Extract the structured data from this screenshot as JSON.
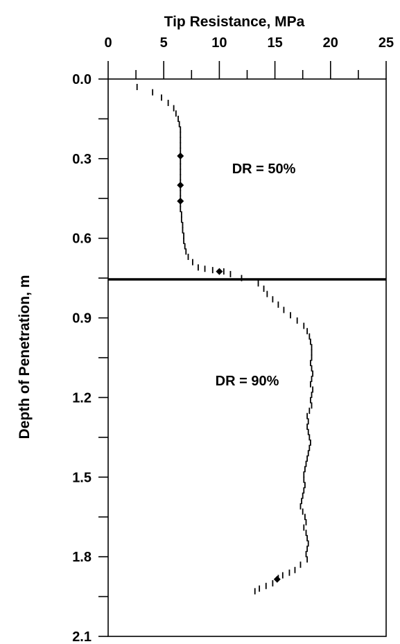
{
  "chart_data": {
    "type": "scatter",
    "title": "",
    "xlabel": "Tip Resistance, MPa",
    "ylabel": "Depth of Penetration, m",
    "xlim": [
      0,
      25
    ],
    "ylim": [
      0.0,
      2.1
    ],
    "y_inverted": true,
    "x_axis_position": "top",
    "x_ticks": [
      "0",
      "5",
      "10",
      "15",
      "20",
      "25"
    ],
    "y_ticks": [
      "0.0",
      "0.3",
      "0.6",
      "0.9",
      "1.2",
      "1.5",
      "1.8",
      "2.1"
    ],
    "grid": false,
    "layer_boundary_depth": 0.755,
    "annotations": [
      {
        "text": "DR = 50%",
        "x": 14,
        "y": 0.355
      },
      {
        "text": "DR = 90%",
        "x": 12.5,
        "y": 1.155
      }
    ],
    "series": [
      {
        "marker": "dash",
        "color": "#000000",
        "points": [
          [
            2.6,
            0.03
          ],
          [
            4.0,
            0.05
          ],
          [
            4.8,
            0.07
          ],
          [
            5.4,
            0.09
          ],
          [
            5.9,
            0.11
          ],
          [
            6.1,
            0.13
          ],
          [
            6.3,
            0.15
          ],
          [
            6.4,
            0.17
          ],
          [
            6.5,
            0.19
          ],
          [
            6.5,
            0.21
          ],
          [
            6.5,
            0.23
          ],
          [
            6.5,
            0.25
          ],
          [
            6.5,
            0.27
          ],
          [
            6.5,
            0.29
          ],
          [
            6.5,
            0.31
          ],
          [
            6.5,
            0.33
          ],
          [
            6.5,
            0.35
          ],
          [
            6.5,
            0.37
          ],
          [
            6.5,
            0.39
          ],
          [
            6.5,
            0.41
          ],
          [
            6.5,
            0.43
          ],
          [
            6.5,
            0.45
          ],
          [
            6.5,
            0.47
          ],
          [
            6.5,
            0.49
          ],
          [
            6.6,
            0.51
          ],
          [
            6.6,
            0.53
          ],
          [
            6.7,
            0.55
          ],
          [
            6.7,
            0.57
          ],
          [
            6.8,
            0.59
          ],
          [
            6.8,
            0.61
          ],
          [
            6.9,
            0.63
          ],
          [
            7.0,
            0.65
          ],
          [
            7.2,
            0.67
          ],
          [
            7.6,
            0.69
          ],
          [
            8.1,
            0.71
          ],
          [
            8.7,
            0.715
          ],
          [
            9.4,
            0.72
          ],
          [
            10.4,
            0.725
          ],
          [
            11.0,
            0.735
          ],
          [
            12.0,
            0.75
          ],
          [
            13.5,
            0.77
          ],
          [
            14.0,
            0.79
          ],
          [
            14.3,
            0.81
          ],
          [
            14.8,
            0.83
          ],
          [
            15.3,
            0.85
          ],
          [
            15.8,
            0.87
          ],
          [
            16.4,
            0.89
          ],
          [
            17.0,
            0.91
          ],
          [
            17.6,
            0.93
          ],
          [
            17.9,
            0.95
          ],
          [
            18.1,
            0.97
          ],
          [
            18.2,
            0.99
          ],
          [
            18.3,
            1.01
          ],
          [
            18.3,
            1.03
          ],
          [
            18.3,
            1.05
          ],
          [
            18.2,
            1.07
          ],
          [
            18.3,
            1.09
          ],
          [
            18.4,
            1.11
          ],
          [
            18.3,
            1.13
          ],
          [
            18.2,
            1.15
          ],
          [
            18.4,
            1.17
          ],
          [
            18.3,
            1.19
          ],
          [
            18.2,
            1.21
          ],
          [
            18.3,
            1.23
          ],
          [
            18.1,
            1.25
          ],
          [
            17.9,
            1.27
          ],
          [
            18.0,
            1.29
          ],
          [
            17.9,
            1.31
          ],
          [
            18.0,
            1.33
          ],
          [
            18.1,
            1.35
          ],
          [
            18.2,
            1.37
          ],
          [
            18.1,
            1.39
          ],
          [
            18.0,
            1.41
          ],
          [
            17.9,
            1.43
          ],
          [
            17.8,
            1.45
          ],
          [
            17.7,
            1.47
          ],
          [
            17.6,
            1.49
          ],
          [
            17.6,
            1.51
          ],
          [
            17.7,
            1.53
          ],
          [
            17.6,
            1.55
          ],
          [
            17.5,
            1.57
          ],
          [
            17.4,
            1.59
          ],
          [
            17.3,
            1.61
          ],
          [
            17.5,
            1.63
          ],
          [
            17.7,
            1.65
          ],
          [
            17.8,
            1.67
          ],
          [
            17.6,
            1.69
          ],
          [
            17.8,
            1.71
          ],
          [
            17.9,
            1.73
          ],
          [
            18.0,
            1.75
          ],
          [
            17.9,
            1.77
          ],
          [
            17.8,
            1.79
          ],
          [
            17.9,
            1.81
          ],
          [
            17.3,
            1.83
          ],
          [
            16.8,
            1.85
          ],
          [
            16.3,
            1.86
          ],
          [
            15.7,
            1.87
          ],
          [
            15.3,
            1.88
          ],
          [
            14.8,
            1.9
          ],
          [
            14.2,
            1.91
          ],
          [
            13.6,
            1.92
          ],
          [
            13.2,
            1.93
          ]
        ]
      },
      {
        "marker": "diamond",
        "color": "#000000",
        "points": [
          [
            6.5,
            0.29
          ],
          [
            6.5,
            0.4
          ],
          [
            6.5,
            0.46
          ],
          [
            10.0,
            0.725
          ],
          [
            15.2,
            1.885
          ]
        ]
      }
    ]
  }
}
